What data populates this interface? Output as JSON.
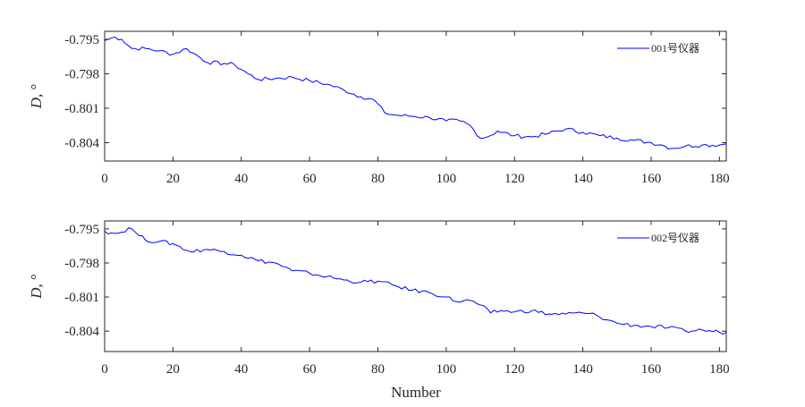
{
  "chart_data": [
    {
      "type": "line",
      "ylabel": "D, °",
      "xlabel": "",
      "xlim": [
        0,
        182
      ],
      "ylim": [
        -0.8056,
        -0.7943
      ],
      "xticks": [
        0,
        20,
        40,
        60,
        80,
        100,
        120,
        140,
        160,
        180
      ],
      "yticks": [
        -0.795,
        -0.798,
        -0.801,
        -0.804
      ],
      "ytick_labels": [
        "-0.795",
        "-0.798",
        "-0.801",
        "-0.804"
      ],
      "legend": "top-right",
      "color": "#0000ff",
      "series": [
        {
          "name": "001号仪器",
          "points": [
            [
              0,
              -0.7951
            ],
            [
              3,
              -0.7948
            ],
            [
              5,
              -0.795
            ],
            [
              8,
              -0.7958
            ],
            [
              12,
              -0.7958
            ],
            [
              16,
              -0.796
            ],
            [
              20,
              -0.7963
            ],
            [
              24,
              -0.7958
            ],
            [
              26,
              -0.7962
            ],
            [
              30,
              -0.797
            ],
            [
              35,
              -0.7971
            ],
            [
              38,
              -0.7972
            ],
            [
              42,
              -0.798
            ],
            [
              45,
              -0.7985
            ],
            [
              50,
              -0.7984
            ],
            [
              55,
              -0.7983
            ],
            [
              60,
              -0.7986
            ],
            [
              65,
              -0.7989
            ],
            [
              70,
              -0.7994
            ],
            [
              75,
              -0.8
            ],
            [
              79,
              -0.8003
            ],
            [
              82,
              -0.8014
            ],
            [
              85,
              -0.8016
            ],
            [
              90,
              -0.8017
            ],
            [
              95,
              -0.8018
            ],
            [
              100,
              -0.8021
            ],
            [
              104,
              -0.8021
            ],
            [
              107,
              -0.8025
            ],
            [
              110,
              -0.8036
            ],
            [
              112,
              -0.8035
            ],
            [
              115,
              -0.803
            ],
            [
              120,
              -0.8034
            ],
            [
              125,
              -0.8035
            ],
            [
              130,
              -0.8032
            ],
            [
              135,
              -0.8028
            ],
            [
              140,
              -0.8031
            ],
            [
              145,
              -0.8034
            ],
            [
              150,
              -0.8036
            ],
            [
              155,
              -0.8038
            ],
            [
              160,
              -0.804
            ],
            [
              163,
              -0.8042
            ],
            [
              166,
              -0.8045
            ],
            [
              170,
              -0.8043
            ],
            [
              175,
              -0.8042
            ],
            [
              180,
              -0.8042
            ],
            [
              182,
              -0.8041
            ]
          ]
        }
      ]
    },
    {
      "type": "line",
      "ylabel": "D, °",
      "xlabel": "Number",
      "xlim": [
        0,
        182
      ],
      "ylim": [
        -0.8058,
        -0.7943
      ],
      "xticks": [
        0,
        20,
        40,
        60,
        80,
        100,
        120,
        140,
        160,
        180
      ],
      "yticks": [
        -0.795,
        -0.798,
        -0.801,
        -0.804
      ],
      "ytick_labels": [
        "-0.795",
        "-0.798",
        "-0.801",
        "-0.804"
      ],
      "legend": "top-right",
      "color": "#0000ff",
      "series": [
        {
          "name": "002号仪器",
          "points": [
            [
              0,
              -0.7952
            ],
            [
              3,
              -0.7954
            ],
            [
              5,
              -0.7953
            ],
            [
              7,
              -0.7949
            ],
            [
              9,
              -0.7953
            ],
            [
              12,
              -0.796
            ],
            [
              16,
              -0.7961
            ],
            [
              20,
              -0.7963
            ],
            [
              25,
              -0.797
            ],
            [
              30,
              -0.7968
            ],
            [
              35,
              -0.797
            ],
            [
              40,
              -0.7973
            ],
            [
              45,
              -0.7978
            ],
            [
              50,
              -0.798
            ],
            [
              55,
              -0.7987
            ],
            [
              60,
              -0.7989
            ],
            [
              65,
              -0.7992
            ],
            [
              70,
              -0.7995
            ],
            [
              75,
              -0.7997
            ],
            [
              80,
              -0.7996
            ],
            [
              85,
              -0.8
            ],
            [
              90,
              -0.8004
            ],
            [
              95,
              -0.8006
            ],
            [
              100,
              -0.801
            ],
            [
              103,
              -0.8014
            ],
            [
              107,
              -0.8013
            ],
            [
              110,
              -0.8017
            ],
            [
              113,
              -0.8024
            ],
            [
              116,
              -0.8022
            ],
            [
              120,
              -0.8023
            ],
            [
              125,
              -0.8022
            ],
            [
              130,
              -0.8025
            ],
            [
              135,
              -0.8025
            ],
            [
              140,
              -0.8024
            ],
            [
              144,
              -0.8026
            ],
            [
              147,
              -0.803
            ],
            [
              150,
              -0.8033
            ],
            [
              155,
              -0.8035
            ],
            [
              160,
              -0.8036
            ],
            [
              165,
              -0.8037
            ],
            [
              170,
              -0.804
            ],
            [
              175,
              -0.8039
            ],
            [
              180,
              -0.8041
            ],
            [
              182,
              -0.8041
            ]
          ]
        }
      ]
    }
  ]
}
